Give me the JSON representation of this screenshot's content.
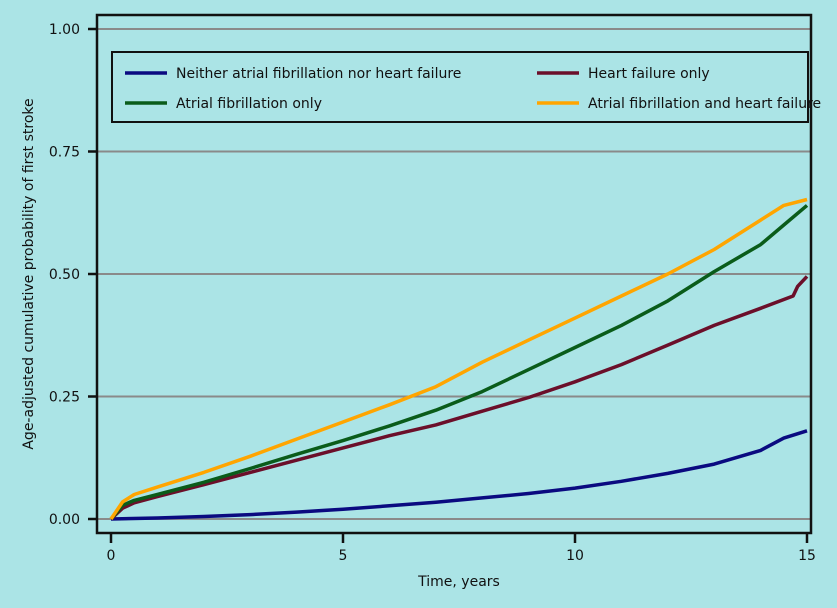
{
  "chart_data": {
    "type": "line",
    "title": "",
    "xlabel": "Time, years",
    "ylabel": "Age-adjusted cumulative probability of first stroke",
    "xlim": [
      0,
      15
    ],
    "ylim": [
      0,
      1
    ],
    "xticks": [
      "0",
      "5",
      "10",
      "15"
    ],
    "xtick_values": [
      0,
      5,
      10,
      15
    ],
    "yticks": [
      "0.00",
      "0.25",
      "0.50",
      "0.75",
      "1.00"
    ],
    "ytick_values": [
      0,
      0.25,
      0.5,
      0.75,
      1
    ],
    "grid": "horizontal",
    "legend_position": "top",
    "series": [
      {
        "name": "Neither atrial fibrillation nor heart failure",
        "color": "#0a0a80",
        "x": [
          0,
          1,
          2,
          3,
          4,
          5,
          6,
          7,
          8,
          9,
          10,
          11,
          12,
          13,
          14,
          14.5,
          15
        ],
        "y": [
          0,
          0.002,
          0.005,
          0.009,
          0.014,
          0.02,
          0.027,
          0.034,
          0.043,
          0.052,
          0.063,
          0.077,
          0.093,
          0.112,
          0.14,
          0.165,
          0.18
        ]
      },
      {
        "name": "Heart failure only",
        "color": "#6b0f2a",
        "x": [
          0,
          0.25,
          0.5,
          1,
          2,
          3,
          4,
          5,
          6,
          7,
          8,
          9,
          10,
          11,
          12,
          13,
          14,
          14.7,
          14.8,
          15
        ],
        "y": [
          0,
          0.022,
          0.033,
          0.046,
          0.07,
          0.095,
          0.12,
          0.145,
          0.17,
          0.192,
          0.22,
          0.248,
          0.28,
          0.315,
          0.355,
          0.395,
          0.43,
          0.455,
          0.475,
          0.495
        ]
      },
      {
        "name": "Atrial fibrillation only",
        "color": "#0a5c1a",
        "x": [
          0,
          0.25,
          0.5,
          1,
          2,
          3,
          4,
          5,
          6,
          7,
          8,
          9,
          10,
          11,
          12,
          13,
          14,
          14.5,
          15
        ],
        "y": [
          0,
          0.028,
          0.038,
          0.05,
          0.075,
          0.103,
          0.132,
          0.16,
          0.19,
          0.222,
          0.26,
          0.305,
          0.35,
          0.395,
          0.445,
          0.505,
          0.56,
          0.6,
          0.64
        ]
      },
      {
        "name": "Atrial fibrillation and heart failure",
        "color": "#ffa500",
        "x": [
          0,
          0.25,
          0.5,
          1,
          2,
          3,
          4,
          5,
          6,
          7,
          8,
          9,
          10,
          11,
          12,
          13,
          14,
          14.5,
          15
        ],
        "y": [
          0,
          0.035,
          0.05,
          0.065,
          0.095,
          0.128,
          0.163,
          0.198,
          0.233,
          0.27,
          0.32,
          0.365,
          0.41,
          0.455,
          0.5,
          0.55,
          0.61,
          0.64,
          0.652
        ]
      }
    ]
  }
}
